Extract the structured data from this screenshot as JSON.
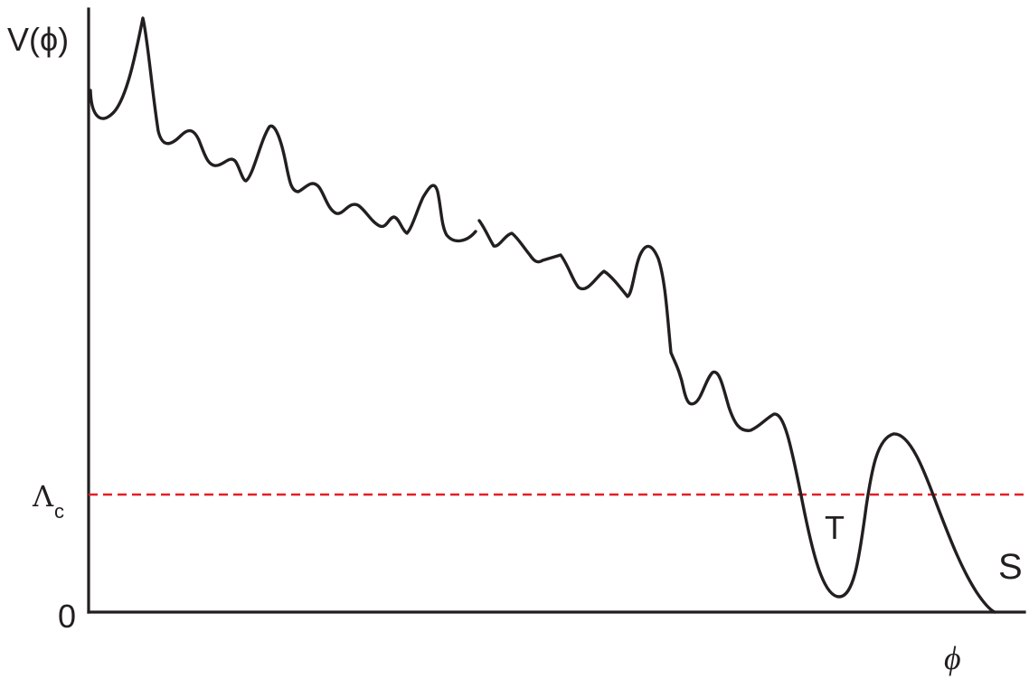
{
  "diagram": {
    "y_axis_label": "V(ϕ)",
    "x_axis_label": "ϕ",
    "origin_label": "0",
    "lambda_symbol": "Λ",
    "lambda_subscript": "c",
    "well_label_T": "T",
    "well_label_S": "S",
    "curve_color": "#231f20",
    "threshold_color": "#e41e26",
    "threshold_style": "dashed"
  }
}
